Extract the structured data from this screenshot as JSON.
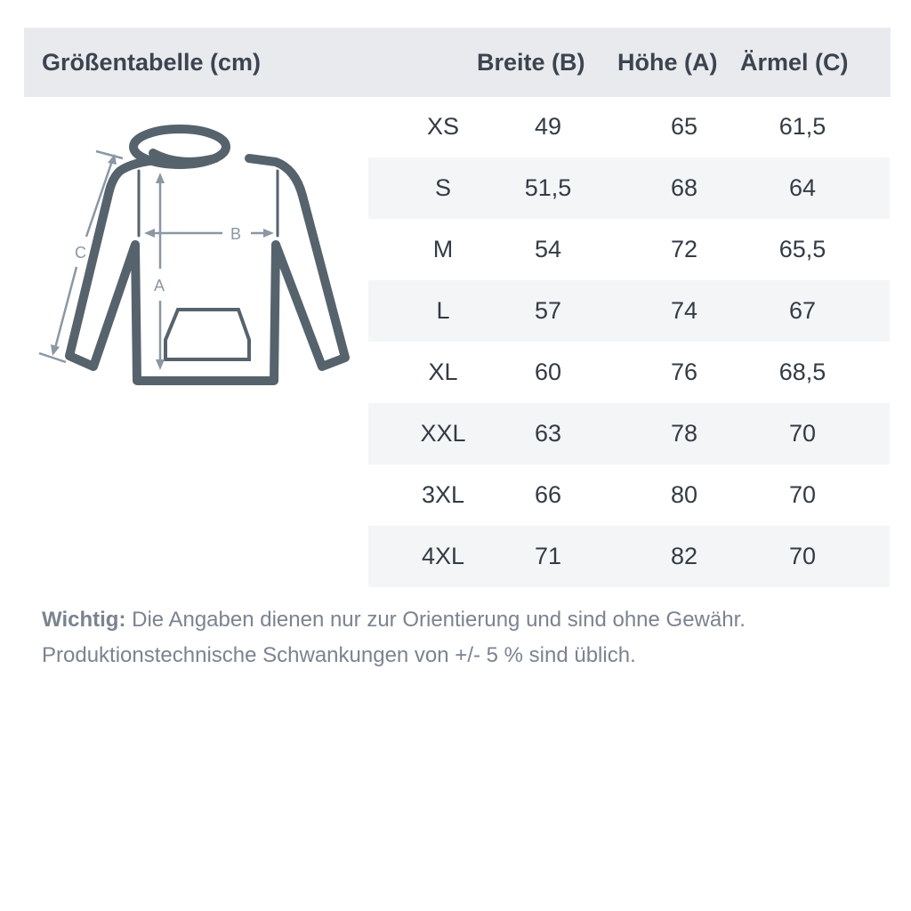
{
  "header": {
    "title": "Größentabelle (cm)",
    "columns": [
      "Breite (B)",
      "Höhe (A)",
      "Ärmel (C)"
    ]
  },
  "diagram": {
    "labels": {
      "a": "A",
      "b": "B",
      "c": "C"
    },
    "stroke_color": "#56636c",
    "arrow_color": "#8b97a4"
  },
  "rows": [
    {
      "size": "XS",
      "breite": "49",
      "hoehe": "65",
      "aermel": "61,5"
    },
    {
      "size": "S",
      "breite": "51,5",
      "hoehe": "68",
      "aermel": "64"
    },
    {
      "size": "M",
      "breite": "54",
      "hoehe": "72",
      "aermel": "65,5"
    },
    {
      "size": "L",
      "breite": "57",
      "hoehe": "74",
      "aermel": "67"
    },
    {
      "size": "XL",
      "breite": "60",
      "hoehe": "76",
      "aermel": "68,5"
    },
    {
      "size": "XXL",
      "breite": "63",
      "hoehe": "78",
      "aermel": "70"
    },
    {
      "size": "3XL",
      "breite": "66",
      "hoehe": "80",
      "aermel": "70"
    },
    {
      "size": "4XL",
      "breite": "71",
      "hoehe": "82",
      "aermel": "70"
    }
  ],
  "note": {
    "label": "Wichtig:",
    "line1": " Die Angaben dienen nur zur Orientierung und sind ohne Gewähr.",
    "line2": "Produktionstechnische Schwankungen von +/- 5 % sind üblich."
  }
}
